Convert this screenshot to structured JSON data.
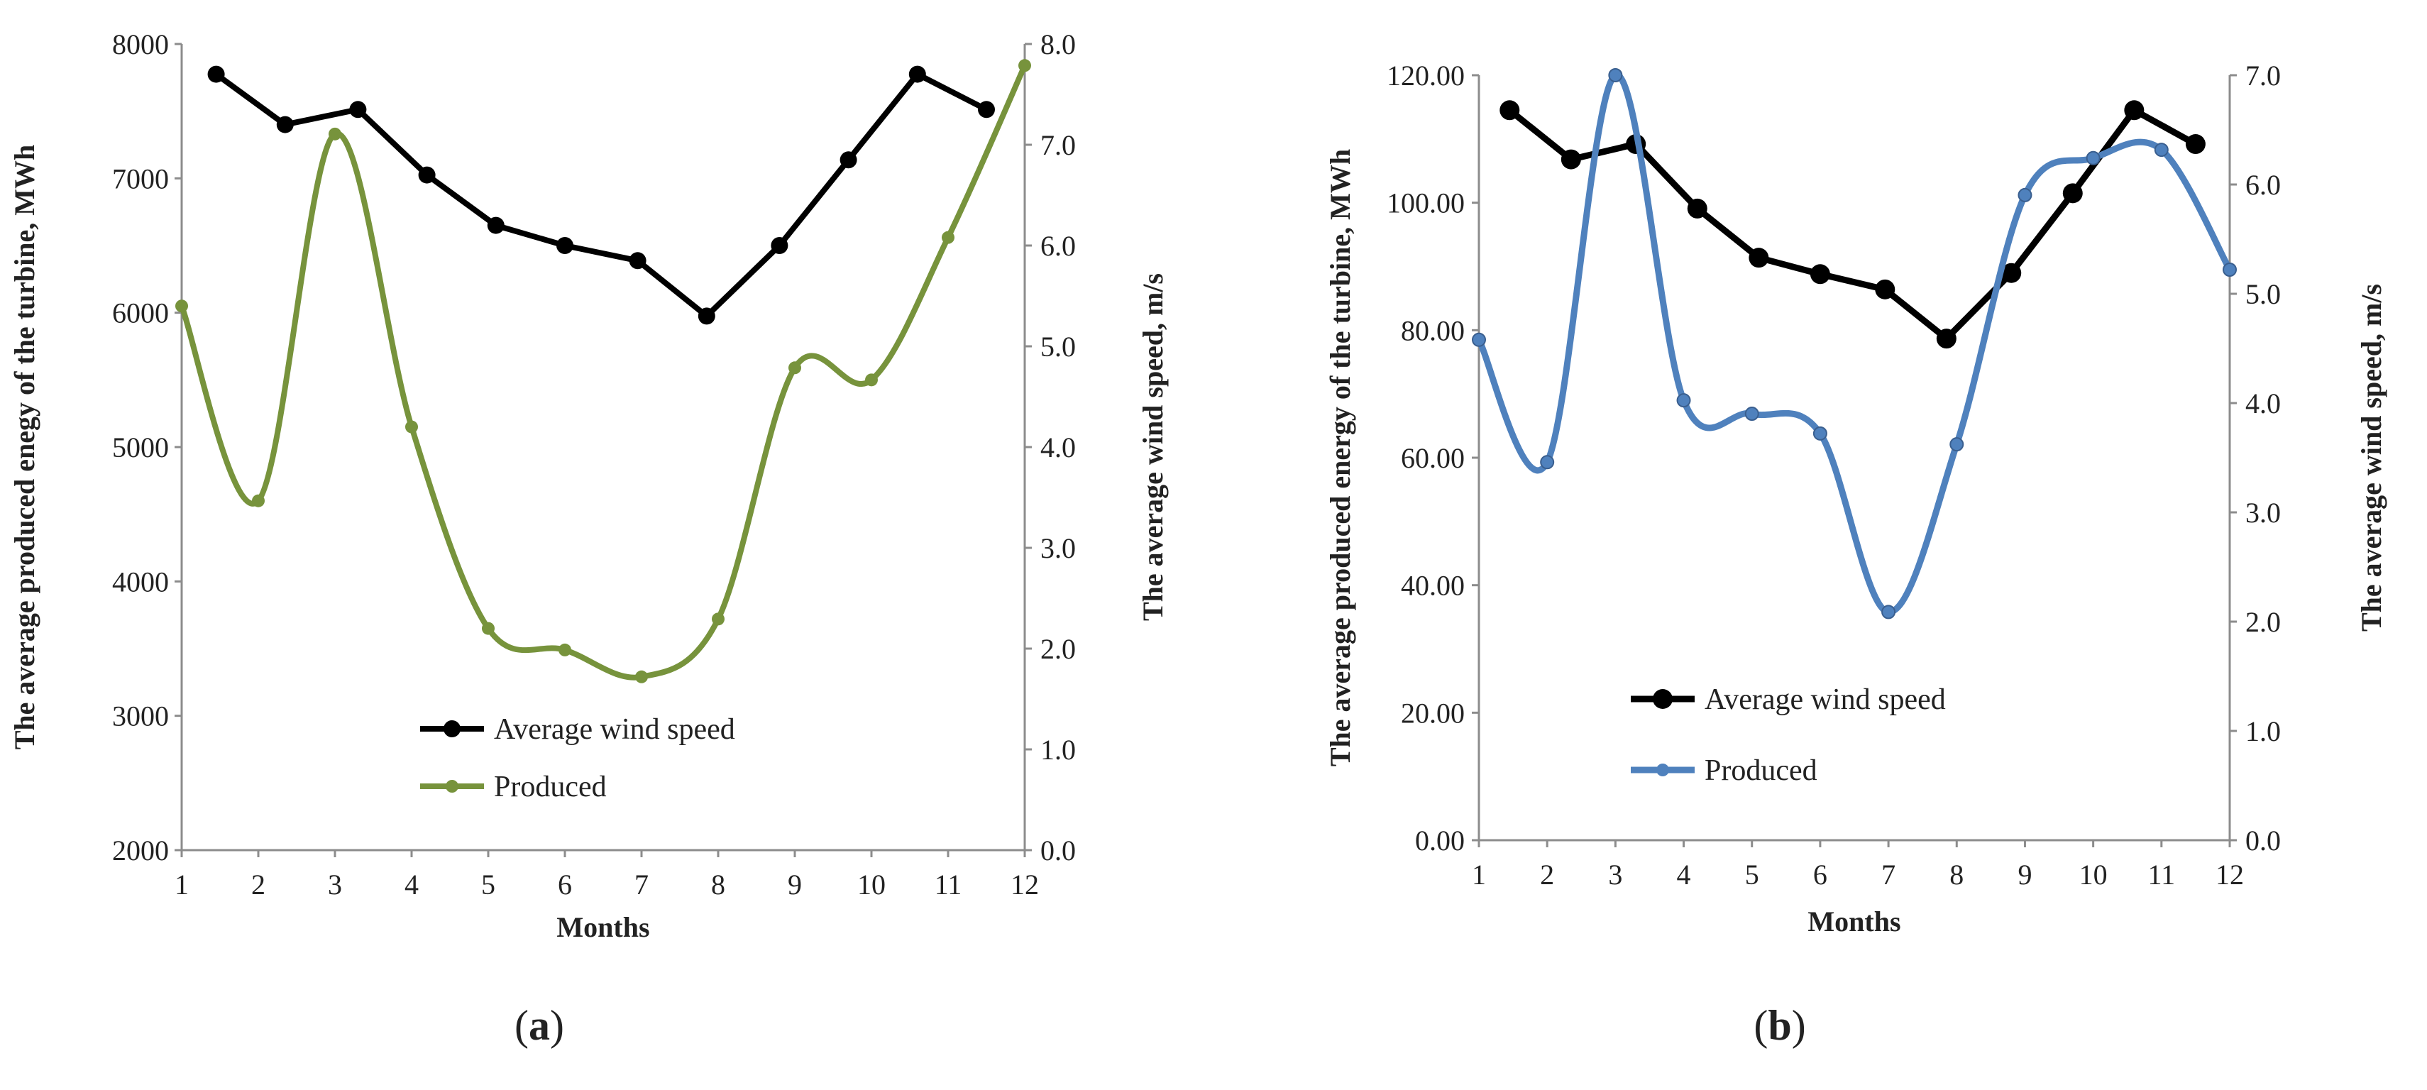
{
  "chart_data": [
    {
      "id": "a",
      "type": "line",
      "caption": {
        "open": "(",
        "letter": "a",
        "close": ")"
      },
      "xlabel": "Months",
      "ylabel_left": "The average produced enegy of the turbine, MWh",
      "ylabel_right": "The average wind speed, m/s",
      "x_ticks": [
        "1",
        "2",
        "3",
        "4",
        "5",
        "6",
        "7",
        "8",
        "9",
        "10",
        "11",
        "12"
      ],
      "left_axis": {
        "min": 2000,
        "max": 8000,
        "ticks": [
          "2000",
          "3000",
          "4000",
          "5000",
          "6000",
          "7000",
          "8000"
        ]
      },
      "right_axis": {
        "min": 0,
        "max": 8,
        "ticks": [
          "0.0",
          "1.0",
          "2.0",
          "3.0",
          "4.0",
          "5.0",
          "6.0",
          "7.0",
          "8.0"
        ]
      },
      "series": [
        {
          "name": "Average wind speed",
          "axis": "right",
          "color": "#000000",
          "smooth": false,
          "x": [
            1.45,
            2.35,
            3.3,
            4.2,
            5.1,
            6.0,
            6.95,
            7.85,
            8.8,
            9.7,
            10.6,
            11.5
          ],
          "values": [
            7.7,
            7.2,
            7.35,
            6.7,
            6.2,
            6.0,
            5.85,
            5.3,
            6.0,
            6.85,
            7.7,
            7.35
          ]
        },
        {
          "name": "Produced",
          "axis": "left",
          "color": "#77933c",
          "smooth": true,
          "x": [
            1,
            2,
            3,
            4,
            5,
            6,
            7,
            8,
            9,
            10,
            11,
            12
          ],
          "values": [
            6050,
            4600,
            7330,
            5150,
            3650,
            3490,
            3290,
            3720,
            5590,
            5500,
            6560,
            7840
          ]
        }
      ],
      "legend": [
        {
          "label": "Average wind speed",
          "color": "#000000"
        },
        {
          "label": "Produced",
          "color": "#77933c"
        }
      ]
    },
    {
      "id": "b",
      "type": "line",
      "caption": {
        "open": "(",
        "letter": "b",
        "close": ")"
      },
      "xlabel": "Months",
      "ylabel_left": "The average produced energy of the  turbine, MWh",
      "ylabel_right": "The average wind speed, m/s",
      "x_ticks": [
        "1",
        "2",
        "3",
        "4",
        "5",
        "6",
        "7",
        "8",
        "9",
        "10",
        "11",
        "12"
      ],
      "left_axis": {
        "min": 0,
        "max": 120,
        "ticks": [
          "0.00",
          "20.00",
          "40.00",
          "60.00",
          "80.00",
          "100.00",
          "120.00"
        ]
      },
      "right_axis": {
        "min": 0,
        "max": 7,
        "ticks": [
          "0.0",
          "1.0",
          "2.0",
          "3.0",
          "4.0",
          "5.0",
          "6.0",
          "7.0"
        ]
      },
      "series": [
        {
          "name": "Average wind speed",
          "axis": "right",
          "color": "#000000",
          "smooth": false,
          "x": [
            1.45,
            2.35,
            3.3,
            4.2,
            5.1,
            6.0,
            6.95,
            7.85,
            8.8,
            9.7,
            10.6,
            11.5
          ],
          "values": [
            6.68,
            6.23,
            6.37,
            5.78,
            5.33,
            5.18,
            5.04,
            4.59,
            5.19,
            5.92,
            6.68,
            6.37
          ]
        },
        {
          "name": "Produced",
          "axis": "left",
          "color": "#4f81bd",
          "smooth": true,
          "x": [
            1,
            2,
            3,
            4,
            5,
            6,
            7,
            8,
            9,
            10,
            11,
            12
          ],
          "values": [
            78.5,
            59.3,
            120.0,
            69.0,
            66.9,
            63.8,
            35.8,
            62.1,
            101.2,
            107.0,
            108.3,
            89.5
          ]
        }
      ],
      "legend": [
        {
          "label": "Average wind speed",
          "color": "#000000"
        },
        {
          "label": "Produced",
          "color": "#4f81bd"
        }
      ]
    }
  ]
}
